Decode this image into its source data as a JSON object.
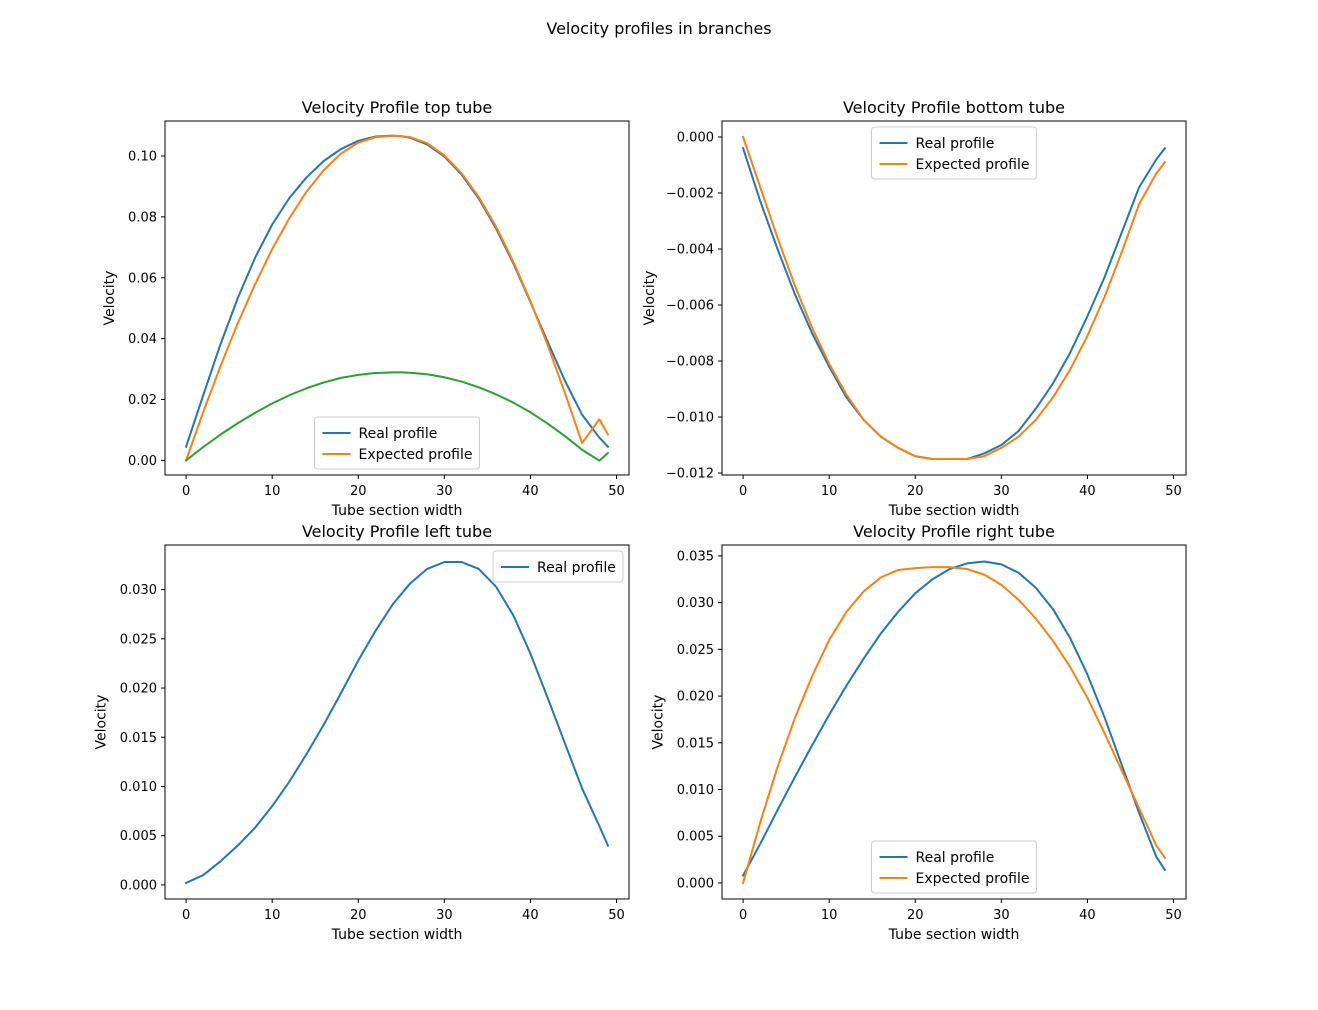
{
  "figure_title": "Velocity profiles in branches",
  "colors": {
    "tab_blue": "#1f77b4",
    "tab_orange": "#ff7f0e",
    "tab_green": "#2ca02c"
  },
  "chart_data": [
    {
      "type": "line",
      "title": "Velocity Profile top tube",
      "xlabel": "Tube section width",
      "ylabel": "Velocity",
      "xlim": [
        -2.45,
        51.45
      ],
      "ylim": [
        -0.0048,
        0.1115
      ],
      "xticks": [
        0,
        10,
        20,
        30,
        40,
        50
      ],
      "yticks": [
        0.0,
        0.02,
        0.04,
        0.06,
        0.08,
        0.1
      ],
      "ytick_labels": [
        "0.00",
        "0.02",
        "0.04",
        "0.06",
        "0.08",
        "0.10"
      ],
      "legend_position": "lower center",
      "legend_entries": [
        "Real profile",
        "Expected profile"
      ],
      "series": [
        {
          "name": "Real profile",
          "color": "#1f77b4",
          "x": [
            0,
            2,
            4,
            6,
            8,
            10,
            12,
            14,
            16,
            18,
            20,
            22,
            24,
            25,
            26,
            28,
            30,
            32,
            34,
            36,
            38,
            40,
            42,
            44,
            46,
            48,
            49
          ],
          "y": [
            0.0045,
            0.0215,
            0.0382,
            0.0533,
            0.0665,
            0.0775,
            0.0862,
            0.093,
            0.0984,
            0.1023,
            0.105,
            0.1064,
            0.1067,
            0.1065,
            0.106,
            0.1038,
            0.0998,
            0.0939,
            0.086,
            0.0762,
            0.0648,
            0.052,
            0.039,
            0.0262,
            0.015,
            0.0075,
            0.0045
          ]
        },
        {
          "name": "Expected profile",
          "color": "#ff7f0e",
          "x": [
            0,
            2,
            4,
            6,
            8,
            10,
            12,
            14,
            16,
            18,
            20,
            22,
            24,
            25,
            26,
            28,
            30,
            32,
            34,
            36,
            38,
            40,
            42,
            44,
            46,
            48,
            49
          ],
          "y": [
            0.0,
            0.016,
            0.031,
            0.045,
            0.0578,
            0.0694,
            0.0796,
            0.0883,
            0.0954,
            0.1008,
            0.1044,
            0.1062,
            0.1066,
            0.1065,
            0.1062,
            0.1042,
            0.1002,
            0.0943,
            0.0865,
            0.0768,
            0.0653,
            0.0523,
            0.0379,
            0.0222,
            0.0057,
            0.0135,
            0.0085
          ]
        },
        {
          "name": "",
          "color": "#2ca02c",
          "x": [
            0,
            2,
            4,
            6,
            8,
            10,
            12,
            14,
            16,
            18,
            20,
            22,
            24,
            25,
            26,
            28,
            30,
            32,
            34,
            36,
            38,
            40,
            42,
            44,
            46,
            48,
            49
          ],
          "y": [
            0.0,
            0.0044,
            0.0085,
            0.0122,
            0.0156,
            0.0187,
            0.0214,
            0.0237,
            0.0256,
            0.0271,
            0.0281,
            0.0287,
            0.0289,
            0.0289,
            0.0288,
            0.0283,
            0.0273,
            0.0259,
            0.024,
            0.0217,
            0.019,
            0.0158,
            0.0121,
            0.008,
            0.0035,
            -0.0001,
            0.0024
          ]
        }
      ]
    },
    {
      "type": "line",
      "title": "Velocity Profile bottom tube",
      "xlabel": "Tube section width",
      "ylabel": "Velocity",
      "xlim": [
        -2.45,
        51.45
      ],
      "ylim": [
        -0.01207,
        0.00057
      ],
      "xticks": [
        0,
        10,
        20,
        30,
        40,
        50
      ],
      "yticks": [
        0.0,
        -0.002,
        -0.004,
        -0.006,
        -0.008,
        -0.01,
        -0.012
      ],
      "ytick_labels": [
        "0.000",
        "−0.002",
        "−0.004",
        "−0.006",
        "−0.008",
        "−0.010",
        "−0.012"
      ],
      "legend_position": "upper center",
      "legend_entries": [
        "Real profile",
        "Expected profile"
      ],
      "series": [
        {
          "name": "Real profile",
          "color": "#1f77b4",
          "x": [
            0,
            2,
            4,
            6,
            8,
            10,
            12,
            14,
            16,
            18,
            20,
            22,
            24,
            25,
            26,
            28,
            30,
            32,
            34,
            36,
            38,
            40,
            42,
            44,
            46,
            48,
            49
          ],
          "y": [
            -0.0004,
            -0.0023,
            -0.004,
            -0.0056,
            -0.007,
            -0.0082,
            -0.0093,
            -0.0101,
            -0.0107,
            -0.0111,
            -0.0114,
            -0.0115,
            -0.0115,
            -0.0115,
            -0.0115,
            -0.0113,
            -0.011,
            -0.0105,
            -0.0097,
            -0.0088,
            -0.0077,
            -0.0064,
            -0.005,
            -0.0034,
            -0.0018,
            -0.0008,
            -0.0004
          ]
        },
        {
          "name": "Expected profile",
          "color": "#ff7f0e",
          "x": [
            0,
            2,
            4,
            6,
            8,
            10,
            12,
            14,
            16,
            18,
            20,
            22,
            24,
            25,
            26,
            28,
            30,
            32,
            34,
            36,
            38,
            40,
            42,
            44,
            46,
            48,
            49
          ],
          "y": [
            0.0,
            -0.0018,
            -0.0036,
            -0.0053,
            -0.0068,
            -0.0081,
            -0.0092,
            -0.0101,
            -0.0107,
            -0.0111,
            -0.0114,
            -0.0115,
            -0.0115,
            -0.0115,
            -0.0115,
            -0.0114,
            -0.0111,
            -0.0107,
            -0.0101,
            -0.0093,
            -0.0083,
            -0.0071,
            -0.0057,
            -0.0041,
            -0.0024,
            -0.0013,
            -0.0009
          ]
        }
      ]
    },
    {
      "type": "line",
      "title": "Velocity Profile left tube",
      "xlabel": "Tube section width",
      "ylabel": "Velocity",
      "xlim": [
        -2.45,
        51.45
      ],
      "ylim": [
        -0.00143,
        0.03453
      ],
      "xticks": [
        0,
        10,
        20,
        30,
        40,
        50
      ],
      "yticks": [
        0.0,
        0.005,
        0.01,
        0.015,
        0.02,
        0.025,
        0.03
      ],
      "ytick_labels": [
        "0.000",
        "0.005",
        "0.010",
        "0.015",
        "0.020",
        "0.025",
        "0.030"
      ],
      "legend_position": "upper right",
      "legend_entries": [
        "Real profile"
      ],
      "series": [
        {
          "name": "Real profile",
          "color": "#1f77b4",
          "x": [
            0,
            2,
            4,
            6,
            8,
            10,
            12,
            14,
            16,
            18,
            20,
            22,
            24,
            26,
            28,
            30,
            32,
            34,
            36,
            38,
            40,
            42,
            44,
            46,
            48,
            49
          ],
          "y": [
            0.0002,
            0.001,
            0.0024,
            0.004,
            0.0058,
            0.008,
            0.0105,
            0.0133,
            0.0163,
            0.0195,
            0.0228,
            0.0258,
            0.0285,
            0.0306,
            0.0321,
            0.0328,
            0.0328,
            0.0321,
            0.0303,
            0.0274,
            0.0235,
            0.019,
            0.0144,
            0.0098,
            0.006,
            0.004
          ]
        }
      ]
    },
    {
      "type": "line",
      "title": "Velocity Profile right tube",
      "xlabel": "Tube section width",
      "ylabel": "Velocity",
      "xlim": [
        -2.45,
        51.45
      ],
      "ylim": [
        -0.00172,
        0.03617
      ],
      "xticks": [
        0,
        10,
        20,
        30,
        40,
        50
      ],
      "yticks": [
        0.0,
        0.005,
        0.01,
        0.015,
        0.02,
        0.025,
        0.03,
        0.035
      ],
      "ytick_labels": [
        "0.000",
        "0.005",
        "0.010",
        "0.015",
        "0.020",
        "0.025",
        "0.030",
        "0.035"
      ],
      "legend_position": "lower center",
      "legend_entries": [
        "Real profile",
        "Expected profile"
      ],
      "series": [
        {
          "name": "Real profile",
          "color": "#1f77b4",
          "x": [
            0,
            2,
            4,
            6,
            8,
            10,
            12,
            14,
            16,
            18,
            20,
            22,
            24,
            26,
            28,
            30,
            32,
            34,
            36,
            38,
            40,
            42,
            44,
            46,
            48,
            49
          ],
          "y": [
            0.0008,
            0.0042,
            0.0078,
            0.0113,
            0.0147,
            0.018,
            0.0211,
            0.024,
            0.0267,
            0.029,
            0.031,
            0.0325,
            0.0336,
            0.0342,
            0.0344,
            0.0341,
            0.0332,
            0.0316,
            0.0293,
            0.0262,
            0.0223,
            0.0177,
            0.0126,
            0.0075,
            0.0028,
            0.0014
          ]
        },
        {
          "name": "Expected profile",
          "color": "#ff7f0e",
          "x": [
            0,
            2,
            4,
            6,
            8,
            10,
            12,
            14,
            16,
            18,
            20,
            22,
            24,
            26,
            28,
            30,
            32,
            34,
            36,
            38,
            40,
            42,
            44,
            46,
            48,
            49
          ],
          "y": [
            0.0,
            0.0065,
            0.0124,
            0.0176,
            0.0221,
            0.026,
            0.029,
            0.0312,
            0.0327,
            0.0335,
            0.0337,
            0.0338,
            0.0338,
            0.0336,
            0.033,
            0.0319,
            0.0303,
            0.0283,
            0.0259,
            0.0231,
            0.0198,
            0.016,
            0.012,
            0.008,
            0.004,
            0.0027
          ]
        }
      ]
    }
  ]
}
